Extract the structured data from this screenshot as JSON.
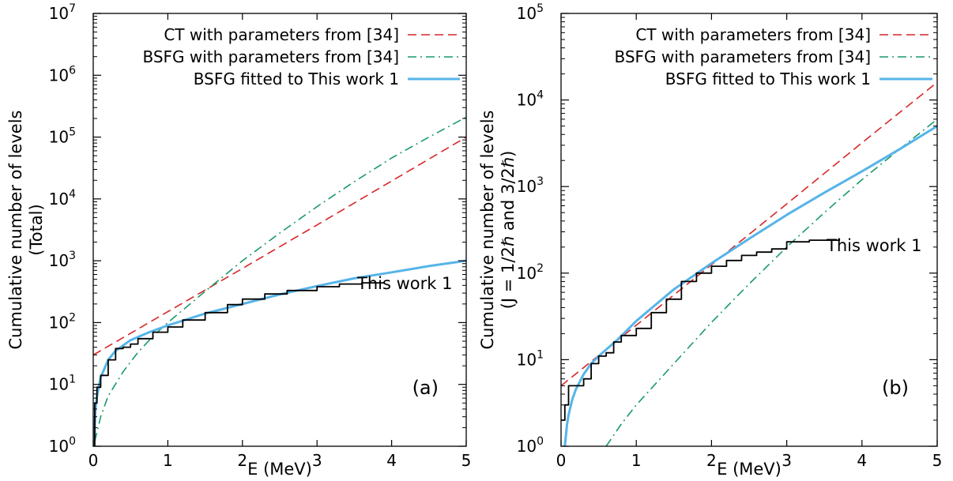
{
  "chart_data": [
    {
      "type": "line",
      "panel_label": "(a)",
      "xlabel": "E (MeV)",
      "ylabel_lines": [
        "Cumulative number of levels",
        "(Total)"
      ],
      "xlim": [
        0,
        5
      ],
      "ylim": [
        1,
        10000000
      ],
      "yscale": "log",
      "x_ticks": [
        "0",
        "1",
        "2",
        "3",
        "4",
        "5"
      ],
      "y_tick_exponents": [
        "0",
        "1",
        "2",
        "3",
        "4",
        "5",
        "6",
        "7"
      ],
      "legend_position": "top-right",
      "series": [
        {
          "name": "CT with parameters from [34]",
          "style": "dashed",
          "color": "#d62728",
          "x": [
            0,
            1,
            2,
            3,
            4,
            5
          ],
          "y": [
            30,
            150,
            750,
            3800,
            19500,
            100000
          ]
        },
        {
          "name": "BSFG with parameters from [34]",
          "style": "dash-dot",
          "color": "#1a9a6a",
          "x": [
            0.02,
            0.1,
            0.2,
            0.4,
            0.6,
            0.8,
            1.0,
            1.5,
            2.0,
            2.5,
            3.0,
            3.5,
            4.0,
            4.5,
            5.0
          ],
          "y": [
            1.2,
            3,
            6.5,
            16,
            33,
            60,
            100,
            320,
            1000,
            2800,
            7500,
            19000,
            46000,
            100000,
            210000
          ]
        },
        {
          "name": "BSFG fitted to This work 1",
          "style": "solid",
          "color": "#56b4e9",
          "x": [
            0.01,
            0.03,
            0.05,
            0.1,
            0.2,
            0.3,
            0.5,
            0.75,
            1.0,
            1.5,
            2.0,
            2.5,
            3.0,
            3.5,
            4.0,
            4.5,
            5.0
          ],
          "y": [
            1,
            4,
            6.5,
            13,
            25,
            35,
            52,
            70,
            90,
            140,
            200,
            285,
            390,
            520,
            650,
            820,
            1000
          ]
        },
        {
          "name": "This work 1",
          "style": "step",
          "color": "#000000",
          "x": [
            0,
            0.02,
            0.05,
            0.1,
            0.2,
            0.3,
            0.4,
            0.5,
            0.6,
            0.8,
            1.0,
            1.2,
            1.5,
            1.8,
            2.0,
            2.3,
            2.6,
            3.0,
            3.3,
            3.6,
            3.9
          ],
          "y": [
            1,
            5,
            9,
            14,
            25,
            38,
            40,
            45,
            55,
            70,
            85,
            110,
            145,
            195,
            240,
            290,
            330,
            380,
            420,
            440,
            450
          ]
        }
      ],
      "annotation": "This work 1"
    },
    {
      "type": "line",
      "panel_label": "(b)",
      "xlabel": "E (MeV)",
      "ylabel_lines": [
        "Cumulative number of levels",
        "(J = 1/2ℏ and 3/2ℏ)"
      ],
      "xlim": [
        0,
        5
      ],
      "ylim": [
        1,
        100000
      ],
      "yscale": "log",
      "x_ticks": [
        "0",
        "1",
        "2",
        "3",
        "4",
        "5"
      ],
      "y_tick_exponents": [
        "0",
        "1",
        "2",
        "3",
        "4",
        "5"
      ],
      "legend_position": "top-right",
      "series": [
        {
          "name": "CT with parameters from [34]",
          "style": "dashed",
          "color": "#d62728",
          "x": [
            0,
            1,
            2,
            3,
            4,
            5
          ],
          "y": [
            5,
            25,
            125,
            630,
            3200,
            16000
          ]
        },
        {
          "name": "BSFG with parameters from [34]",
          "style": "dash-dot",
          "color": "#1a9a6a",
          "x": [
            0.6,
            0.8,
            1.0,
            1.5,
            2.0,
            2.5,
            3.0,
            3.5,
            4.0,
            4.5,
            5.0
          ],
          "y": [
            1,
            1.8,
            3,
            9,
            27,
            75,
            200,
            500,
            1200,
            2700,
            6000
          ]
        },
        {
          "name": "BSFG fitted to This work 1",
          "style": "solid",
          "color": "#56b4e9",
          "x": [
            0.05,
            0.08,
            0.1,
            0.15,
            0.2,
            0.3,
            0.4,
            0.5,
            0.75,
            1.0,
            1.5,
            2.0,
            2.5,
            3.0,
            3.5,
            4.0,
            4.5,
            5.0
          ],
          "y": [
            1,
            1.8,
            2.3,
            3.5,
            4.6,
            6.8,
            9,
            11,
            17,
            28,
            65,
            130,
            250,
            470,
            850,
            1500,
            2700,
            5000
          ]
        },
        {
          "name": "This work 1",
          "style": "step",
          "color": "#000000",
          "x": [
            0,
            0.05,
            0.1,
            0.2,
            0.3,
            0.4,
            0.5,
            0.6,
            0.7,
            0.8,
            1.0,
            1.2,
            1.4,
            1.6,
            1.8,
            2.0,
            2.2,
            2.4,
            2.6,
            2.8,
            3.0,
            3.3,
            3.7
          ],
          "y": [
            2,
            3,
            5,
            5,
            6,
            9,
            11,
            12,
            16,
            19,
            23,
            35,
            50,
            80,
            100,
            120,
            140,
            160,
            175,
            190,
            230,
            240,
            250
          ]
        }
      ],
      "annotation": "This work 1"
    }
  ]
}
